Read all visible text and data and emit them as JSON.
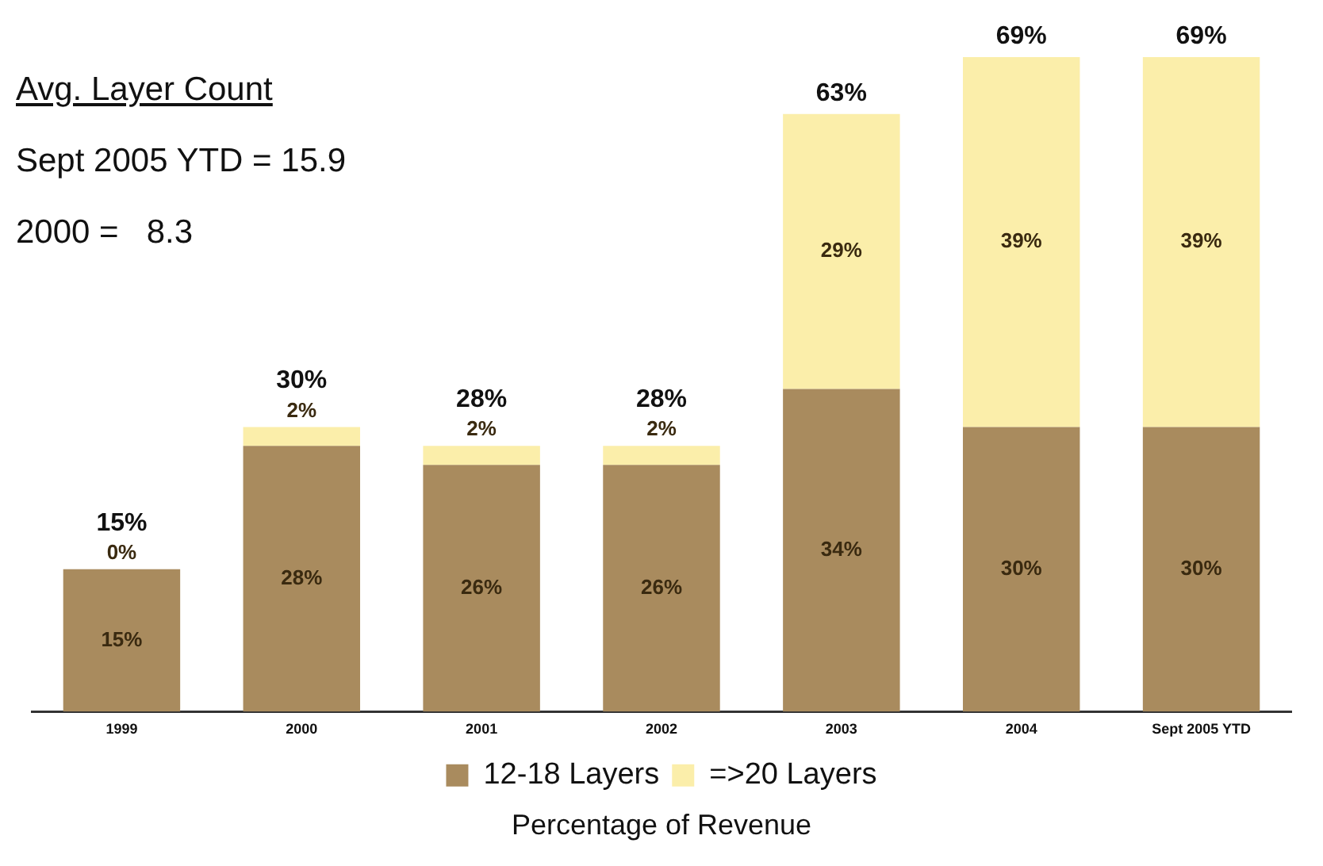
{
  "chart_data": {
    "type": "bar",
    "stacked": true,
    "xlabel": "Percentage of Revenue",
    "legend": "bottom",
    "tick_labels": "x",
    "categories": [
      "1999",
      "2000",
      "2001",
      "2002",
      "2003",
      "2004",
      "Sept 2005 YTD"
    ],
    "series": [
      {
        "name": "12-18 Layers",
        "color": "#a98b5e",
        "values": [
          15,
          28,
          26,
          26,
          34,
          30,
          30
        ],
        "value_labels": [
          "15%",
          "28%",
          "26%",
          "26%",
          "34%",
          "30%",
          "30%"
        ]
      },
      {
        "name": "=>20 Layers",
        "color": "#fbeeaa",
        "values": [
          0,
          2,
          2,
          2,
          29,
          39,
          39
        ],
        "value_labels": [
          "0%",
          "2%",
          "2%",
          "2%",
          "29%",
          "39%",
          "39%"
        ]
      }
    ],
    "totals": [
      "15%",
      "30%",
      "28%",
      "28%",
      "63%",
      "69%",
      "69%"
    ],
    "annotations": [
      "Avg. Layer Count",
      "Sept 2005 YTD = 15.9",
      "2000 =   8.3"
    ]
  }
}
